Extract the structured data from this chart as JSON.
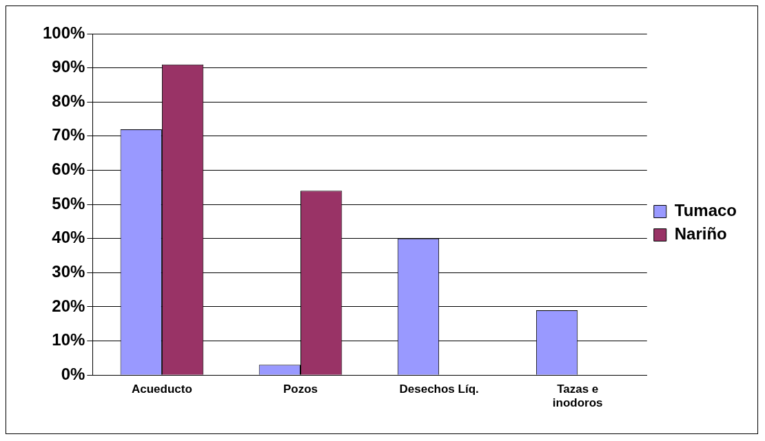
{
  "chart_data": {
    "type": "bar",
    "categories": [
      "Acueducto",
      "Pozos",
      "Desechos Líq.",
      "Tazas e inodoros"
    ],
    "series": [
      {
        "name": "Tumaco",
        "color": "#9999ff",
        "values": [
          72,
          3,
          40,
          19
        ]
      },
      {
        "name": "Nariño",
        "color": "#993366",
        "values": [
          91,
          54,
          null,
          null
        ]
      }
    ],
    "ylim": [
      0,
      100
    ],
    "yticks": [
      {
        "value": 0,
        "label": "0%"
      },
      {
        "value": 10,
        "label": "10%"
      },
      {
        "value": 20,
        "label": "20%"
      },
      {
        "value": 30,
        "label": "30%"
      },
      {
        "value": 40,
        "label": "40%"
      },
      {
        "value": 50,
        "label": "50%"
      },
      {
        "value": 60,
        "label": "60%"
      },
      {
        "value": 70,
        "label": "70%"
      },
      {
        "value": 80,
        "label": "80%"
      },
      {
        "value": 90,
        "label": "90%"
      },
      {
        "value": 100,
        "label": "100%"
      }
    ],
    "grid": "y",
    "legend": "right"
  }
}
